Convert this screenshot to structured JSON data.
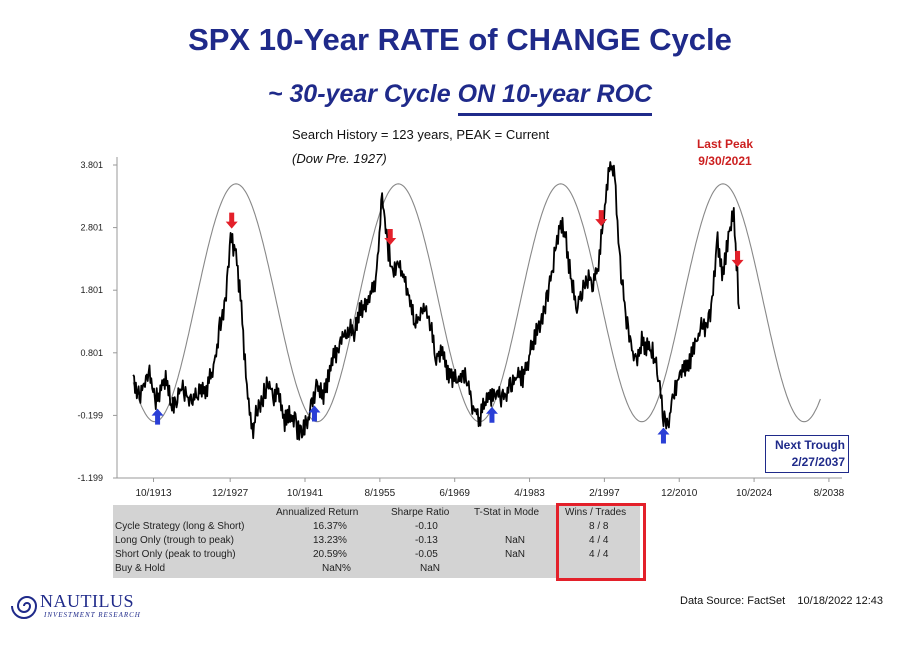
{
  "title": "SPX 10-Year RATE of CHANGE Cycle",
  "subtitle_prefix": "~ 30-year Cycle ",
  "subtitle_underlined": "ON 10-year ROC",
  "search_history": "Search History = 123 years, PEAK = Current",
  "dow_note": "(Dow Pre. 1927)",
  "last_peak_label": "Last Peak",
  "last_peak_date": "9/30/2021",
  "next_trough_label": "Next Trough",
  "next_trough_date": "2/27/2037",
  "colors": {
    "title": "#1f2a8a",
    "peak_arrow": "#e3202a",
    "trough_arrow": "#2a3fd6",
    "series": "#000000",
    "cycle": "#888888",
    "highlight_box": "#e3202a"
  },
  "chart_data": {
    "type": "line",
    "xlabel": "",
    "ylabel": "",
    "y_ticks": [
      "3.801",
      "2.801",
      "1.801",
      "0.801",
      "-0.199",
      "-1.199"
    ],
    "x_ticks": [
      "10/1913",
      "12/1927",
      "10/1941",
      "8/1955",
      "6/1969",
      "4/1983",
      "2/1997",
      "12/2010",
      "10/2024",
      "8/2038"
    ],
    "ylim": [
      -1.199,
      3.801
    ],
    "xlim": [
      1907,
      2041
    ],
    "grid": false,
    "series": [
      {
        "x": [
          1910,
          1911,
          1912,
          1913,
          1914,
          1915,
          1916,
          1917,
          1918,
          1919,
          1920,
          1921,
          1922,
          1923,
          1924,
          1925,
          1926,
          1927,
          1928,
          1929,
          1930,
          1931,
          1932,
          1933,
          1934,
          1935,
          1936,
          1937,
          1938,
          1939,
          1940,
          1941,
          1942,
          1943,
          1944,
          1945,
          1946,
          1947,
          1948,
          1949,
          1950,
          1951,
          1952,
          1953,
          1954,
          1955,
          1956,
          1957,
          1958,
          1959,
          1960,
          1961,
          1962,
          1963,
          1964,
          1965,
          1966,
          1967,
          1968,
          1969,
          1970,
          1971,
          1972,
          1973,
          1974,
          1975,
          1976,
          1977,
          1978,
          1979,
          1980,
          1981,
          1982,
          1983,
          1984,
          1985,
          1986,
          1987,
          1988,
          1989,
          1990,
          1991,
          1992,
          1993,
          1994,
          1995,
          1996,
          1997,
          1998,
          1999,
          2000,
          2001,
          2002,
          2003,
          2004,
          2005,
          2006,
          2007,
          2008,
          2009,
          2010,
          2011,
          2012,
          2013,
          2014,
          2015,
          2016,
          2017,
          2018,
          2019,
          2020,
          2021,
          2022
        ],
        "values": [
          0.45,
          0.1,
          0.3,
          0.5,
          0.0,
          0.2,
          0.4,
          -0.05,
          0.05,
          0.3,
          0.1,
          0.0,
          0.2,
          0.15,
          0.35,
          0.6,
          1.2,
          1.6,
          2.6,
          2.4,
          1.5,
          0.2,
          -0.45,
          -0.1,
          0.1,
          0.35,
          0.05,
          0.2,
          -0.3,
          -0.2,
          -0.35,
          -0.5,
          -0.35,
          0.0,
          0.3,
          0.1,
          0.35,
          0.7,
          0.9,
          1.1,
          1.2,
          1.15,
          1.5,
          1.6,
          1.8,
          2.0,
          3.3,
          2.5,
          2.1,
          2.2,
          2.0,
          1.7,
          1.3,
          1.4,
          1.6,
          1.2,
          0.7,
          0.9,
          0.5,
          0.4,
          0.3,
          0.5,
          0.2,
          -0.1,
          -0.25,
          0.0,
          0.1,
          0.2,
          0.05,
          0.15,
          0.3,
          0.5,
          0.4,
          0.7,
          1.0,
          1.2,
          1.5,
          1.9,
          2.4,
          2.9,
          2.6,
          1.9,
          1.6,
          1.8,
          2.0,
          1.9,
          2.2,
          3.0,
          3.8,
          3.6,
          2.2,
          1.4,
          0.9,
          0.6,
          1.0,
          0.9,
          0.8,
          0.5,
          -0.2,
          -0.3,
          0.2,
          0.5,
          0.6,
          0.7,
          0.9,
          1.2,
          1.2,
          1.6,
          2.6,
          2.0,
          2.7,
          3.0,
          1.5
        ],
        "name": ""
      },
      {
        "type": "sine",
        "amplitude": 1.9,
        "offset": 1.6,
        "period_years": 30,
        "peak_year": 1929,
        "x_range": [
          1910,
          2037
        ],
        "name": ""
      }
    ],
    "peak_arrows": [
      1928.2,
      1957.5,
      1996.5,
      2021.7
    ],
    "trough_arrows": [
      1914.5,
      1943.5,
      1976.3,
      2008.0
    ]
  },
  "stats_table": {
    "headers": [
      "",
      "Annualized Return",
      "Sharpe Ratio",
      "T-Stat in Mode",
      "Wins / Trades"
    ],
    "rows": [
      [
        "Cycle Strategy (long & Short)",
        "16.37%",
        "-0.10",
        "",
        "8 / 8"
      ],
      [
        "Long Only (trough to peak)",
        "13.23%",
        "-0.13",
        "NaN",
        "4 / 4"
      ],
      [
        "Short Only (peak to trough)",
        "20.59%",
        "-0.05",
        "NaN",
        "4 / 4"
      ],
      [
        "Buy & Hold",
        "NaN%",
        "NaN",
        "",
        ""
      ]
    ]
  },
  "logo_name": "NAUTILUS",
  "logo_sub": "INVESTMENT RESEARCH",
  "data_source": "Data Source: FactSet",
  "timestamp": "10/18/2022 12:43"
}
